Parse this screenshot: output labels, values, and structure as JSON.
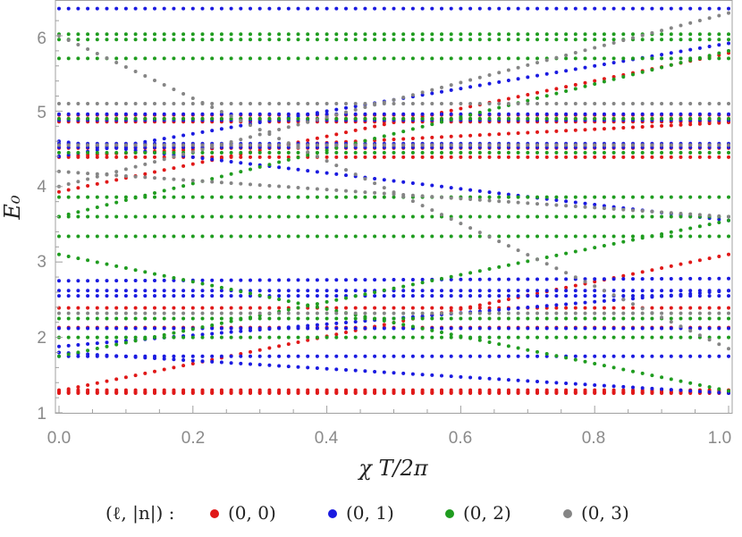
{
  "chart_data": {
    "type": "scatter",
    "xlabel": "χ T/2π",
    "ylabel": "E₀",
    "xlim": [
      0.0,
      1.0
    ],
    "ylim": [
      0.95,
      6.5
    ],
    "x_ticks": [
      "0.0",
      "0.2",
      "0.4",
      "0.6",
      "0.8",
      "1.0"
    ],
    "y_ticks": [
      "1",
      "2",
      "3",
      "4",
      "5",
      "6"
    ],
    "grid": false,
    "legend": {
      "placement": "bottom",
      "title": "(ℓ, |n|) :",
      "entries": [
        "(0, 0)",
        "(0, 1)",
        "(0, 2)",
        "(0, 3)"
      ]
    },
    "series": [
      {
        "name": "(0, 0)",
        "color": "#e01818",
        "curves": [
          {
            "x0": 1.3,
            "x1": 1.3
          },
          {
            "x0": 1.28,
            "x1": 1.28
          },
          {
            "x0": 1.27,
            "x1": 1.27
          },
          {
            "x0": 1.26,
            "x1": 1.26
          },
          {
            "x0": 1.29,
            "x1": 3.1
          },
          {
            "x0": 2.13,
            "x1": 2.13
          },
          {
            "x0": 2.39,
            "x1": 2.39
          },
          {
            "x0": 3.93,
            "x1": 5.77
          },
          {
            "x0": 4.39,
            "x1": 4.39
          },
          {
            "x0": 4.51,
            "x1": 4.51
          },
          {
            "x0": 4.55,
            "x1": 4.55
          },
          {
            "x0": 4.86,
            "x1": 4.86
          },
          {
            "x0": 4.9,
            "x1": 4.9
          },
          {
            "x0": 4.95,
            "x1": 4.95
          },
          {
            "x0": 4.4,
            "x1": 4.85
          }
        ]
      },
      {
        "name": "(0, 1)",
        "color": "#1a1ae0",
        "curves": [
          {
            "x0": 6.36,
            "x1": 6.36
          },
          {
            "x0": 1.8,
            "x1": 1.26
          },
          {
            "x0": 1.88,
            "x1": 2.62
          },
          {
            "x0": 2.55,
            "x1": 2.55
          },
          {
            "x0": 2.62,
            "x1": 2.62
          },
          {
            "x0": 2.75,
            "x1": 2.78
          },
          {
            "x0": 1.75,
            "x1": 1.75
          },
          {
            "x0": 2.12,
            "x1": 2.12
          },
          {
            "x0": 4.52,
            "x1": 4.52
          },
          {
            "x0": 4.57,
            "x1": 4.57
          },
          {
            "x0": 4.88,
            "x1": 4.88
          },
          {
            "x0": 4.96,
            "x1": 4.96
          },
          {
            "x0": 4.4,
            "x1": 5.9
          },
          {
            "x0": 4.6,
            "x1": 3.55
          }
        ]
      },
      {
        "name": "(0, 2)",
        "color": "#1f9c1f",
        "curves": [
          {
            "x0": 6.02,
            "x1": 6.02
          },
          {
            "x0": 5.7,
            "x1": 5.7
          },
          {
            "x0": 5.95,
            "x1": 5.95
          },
          {
            "x0": 3.6,
            "x1": 3.6
          },
          {
            "x0": 3.34,
            "x1": 3.34
          },
          {
            "x0": 3.86,
            "x1": 3.86
          },
          {
            "x0": 3.1,
            "x1": 1.29
          },
          {
            "x0": 2.0,
            "x1": 2.0
          },
          {
            "x0": 2.25,
            "x1": 2.25
          },
          {
            "x0": 1.75,
            "x1": 3.55
          },
          {
            "x0": 4.45,
            "x1": 4.45
          },
          {
            "x0": 4.9,
            "x1": 4.9
          },
          {
            "x0": 3.6,
            "x1": 5.8
          }
        ]
      },
      {
        "name": "(0, 3)",
        "color": "#858585",
        "curves": [
          {
            "x0": 5.1,
            "x1": 5.1
          },
          {
            "x0": 4.55,
            "x1": 4.55
          },
          {
            "x0": 2.32,
            "x1": 2.32
          },
          {
            "x0": 4.2,
            "x1": 3.6
          },
          {
            "x0": 6.0,
            "x1": 1.85
          },
          {
            "x0": 4.0,
            "x1": 6.3
          }
        ]
      }
    ]
  }
}
